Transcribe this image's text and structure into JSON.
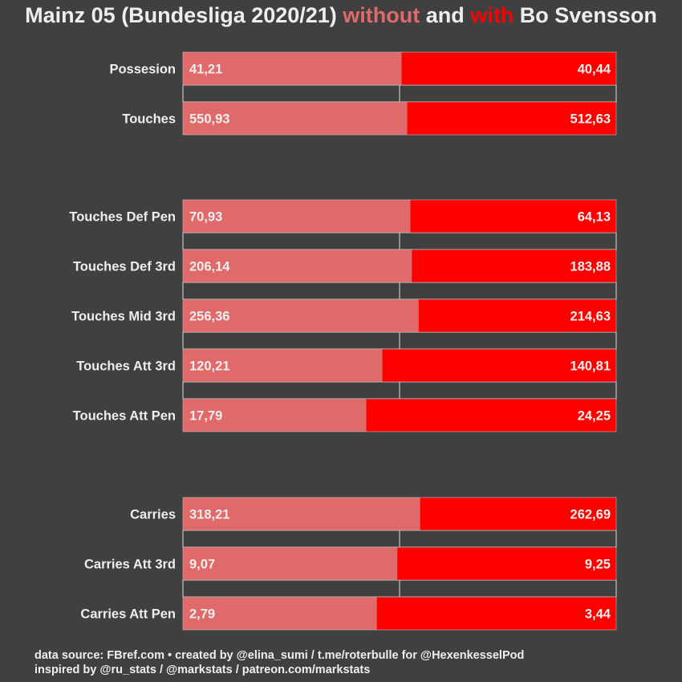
{
  "title": {
    "prefix": "Mainz 05 (Bundesliga 2020/21) ",
    "without": "without",
    "mid": " and ",
    "with": "with",
    "suffix": " Bo Svensson"
  },
  "colors": {
    "background": "#404040",
    "without": "#e06a6a",
    "with": "#ff0000",
    "text": "#eeeeee",
    "gridline": "#dddddd"
  },
  "chart_data": {
    "type": "bar",
    "orientation": "horizontal-stacked-100pct",
    "title": "Mainz 05 (Bundesliga 2020/21) without and with Bo Svensson",
    "series": [
      {
        "name": "without",
        "color": "#e06a6a"
      },
      {
        "name": "with",
        "color": "#ff0000"
      }
    ],
    "groups": [
      {
        "rows": [
          {
            "label": "Possesion",
            "without": 41.21,
            "with": 40.44,
            "without_text": "41,21",
            "with_text": "40,44"
          },
          {
            "label": "Touches",
            "without": 550.93,
            "with": 512.63,
            "without_text": "550,93",
            "with_text": "512,63"
          }
        ]
      },
      {
        "rows": [
          {
            "label": "Touches Def Pen",
            "without": 70.93,
            "with": 64.13,
            "without_text": "70,93",
            "with_text": "64,13"
          },
          {
            "label": "Touches Def 3rd",
            "without": 206.14,
            "with": 183.88,
            "without_text": "206,14",
            "with_text": "183,88"
          },
          {
            "label": "Touches Mid 3rd",
            "without": 256.36,
            "with": 214.63,
            "without_text": "256,36",
            "with_text": "214,63"
          },
          {
            "label": "Touches Att 3rd",
            "without": 120.21,
            "with": 140.81,
            "without_text": "120,21",
            "with_text": "140,81"
          },
          {
            "label": "Touches Att Pen",
            "without": 17.79,
            "with": 24.25,
            "without_text": "17,79",
            "with_text": "24,25"
          }
        ]
      },
      {
        "rows": [
          {
            "label": "Carries",
            "without": 318.21,
            "with": 262.69,
            "without_text": "318,21",
            "with_text": "262,69"
          },
          {
            "label": "Carries Att 3rd",
            "without": 9.07,
            "with": 9.25,
            "without_text": "9,07",
            "with_text": "9,25"
          },
          {
            "label": "Carries Att Pen",
            "without": 2.79,
            "with": 3.44,
            "without_text": "2,79",
            "with_text": "3,44"
          }
        ]
      }
    ]
  },
  "footer": {
    "line1": "data source: FBref.com • created by @elina_sumi / t.me/roterbulle for @HexenkesselPod",
    "line2": "inspired by @ru_stats / @markstats / patreon.com/markstats"
  }
}
